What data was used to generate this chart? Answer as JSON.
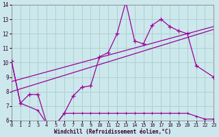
{
  "background_color": "#cce8ec",
  "grid_color": "#aacccc",
  "line_color": "#990099",
  "xlabel": "Windchill (Refroidissement éolien,°C)",
  "xlim": [
    0,
    23
  ],
  "ylim": [
    6,
    14
  ],
  "yticks": [
    6,
    7,
    8,
    9,
    10,
    11,
    12,
    13,
    14
  ],
  "xticks": [
    0,
    1,
    2,
    3,
    4,
    5,
    6,
    7,
    8,
    9,
    10,
    11,
    12,
    13,
    14,
    15,
    16,
    17,
    18,
    19,
    20,
    21,
    22,
    23
  ],
  "line1_x": [
    0,
    1,
    2,
    3,
    4,
    5,
    6,
    7,
    8,
    9,
    10,
    11,
    12,
    13,
    14,
    15,
    16,
    17,
    18,
    19,
    20,
    21,
    23
  ],
  "line1_y": [
    10.1,
    7.2,
    7.8,
    7.8,
    5.8,
    5.7,
    6.5,
    7.7,
    8.3,
    8.4,
    10.4,
    10.7,
    12.0,
    14.2,
    11.5,
    11.3,
    12.6,
    13.0,
    12.5,
    12.2,
    12.0,
    9.8,
    9.0
  ],
  "line2_x": [
    0,
    1,
    3,
    4,
    5,
    6,
    7,
    8,
    9,
    10,
    11,
    12,
    13,
    14,
    15,
    16,
    17,
    18,
    19,
    20,
    21,
    22,
    23
  ],
  "line2_y": [
    10.1,
    7.2,
    6.7,
    5.8,
    5.7,
    6.5,
    6.5,
    6.5,
    6.5,
    6.5,
    6.5,
    6.5,
    6.5,
    6.5,
    6.5,
    6.5,
    6.5,
    6.5,
    6.5,
    6.5,
    6.3,
    6.1,
    6.1
  ],
  "line3_x": [
    0,
    23
  ],
  "line3_y": [
    8.0,
    12.3
  ],
  "line4_x": [
    0,
    23
  ],
  "line4_y": [
    8.7,
    12.5
  ]
}
